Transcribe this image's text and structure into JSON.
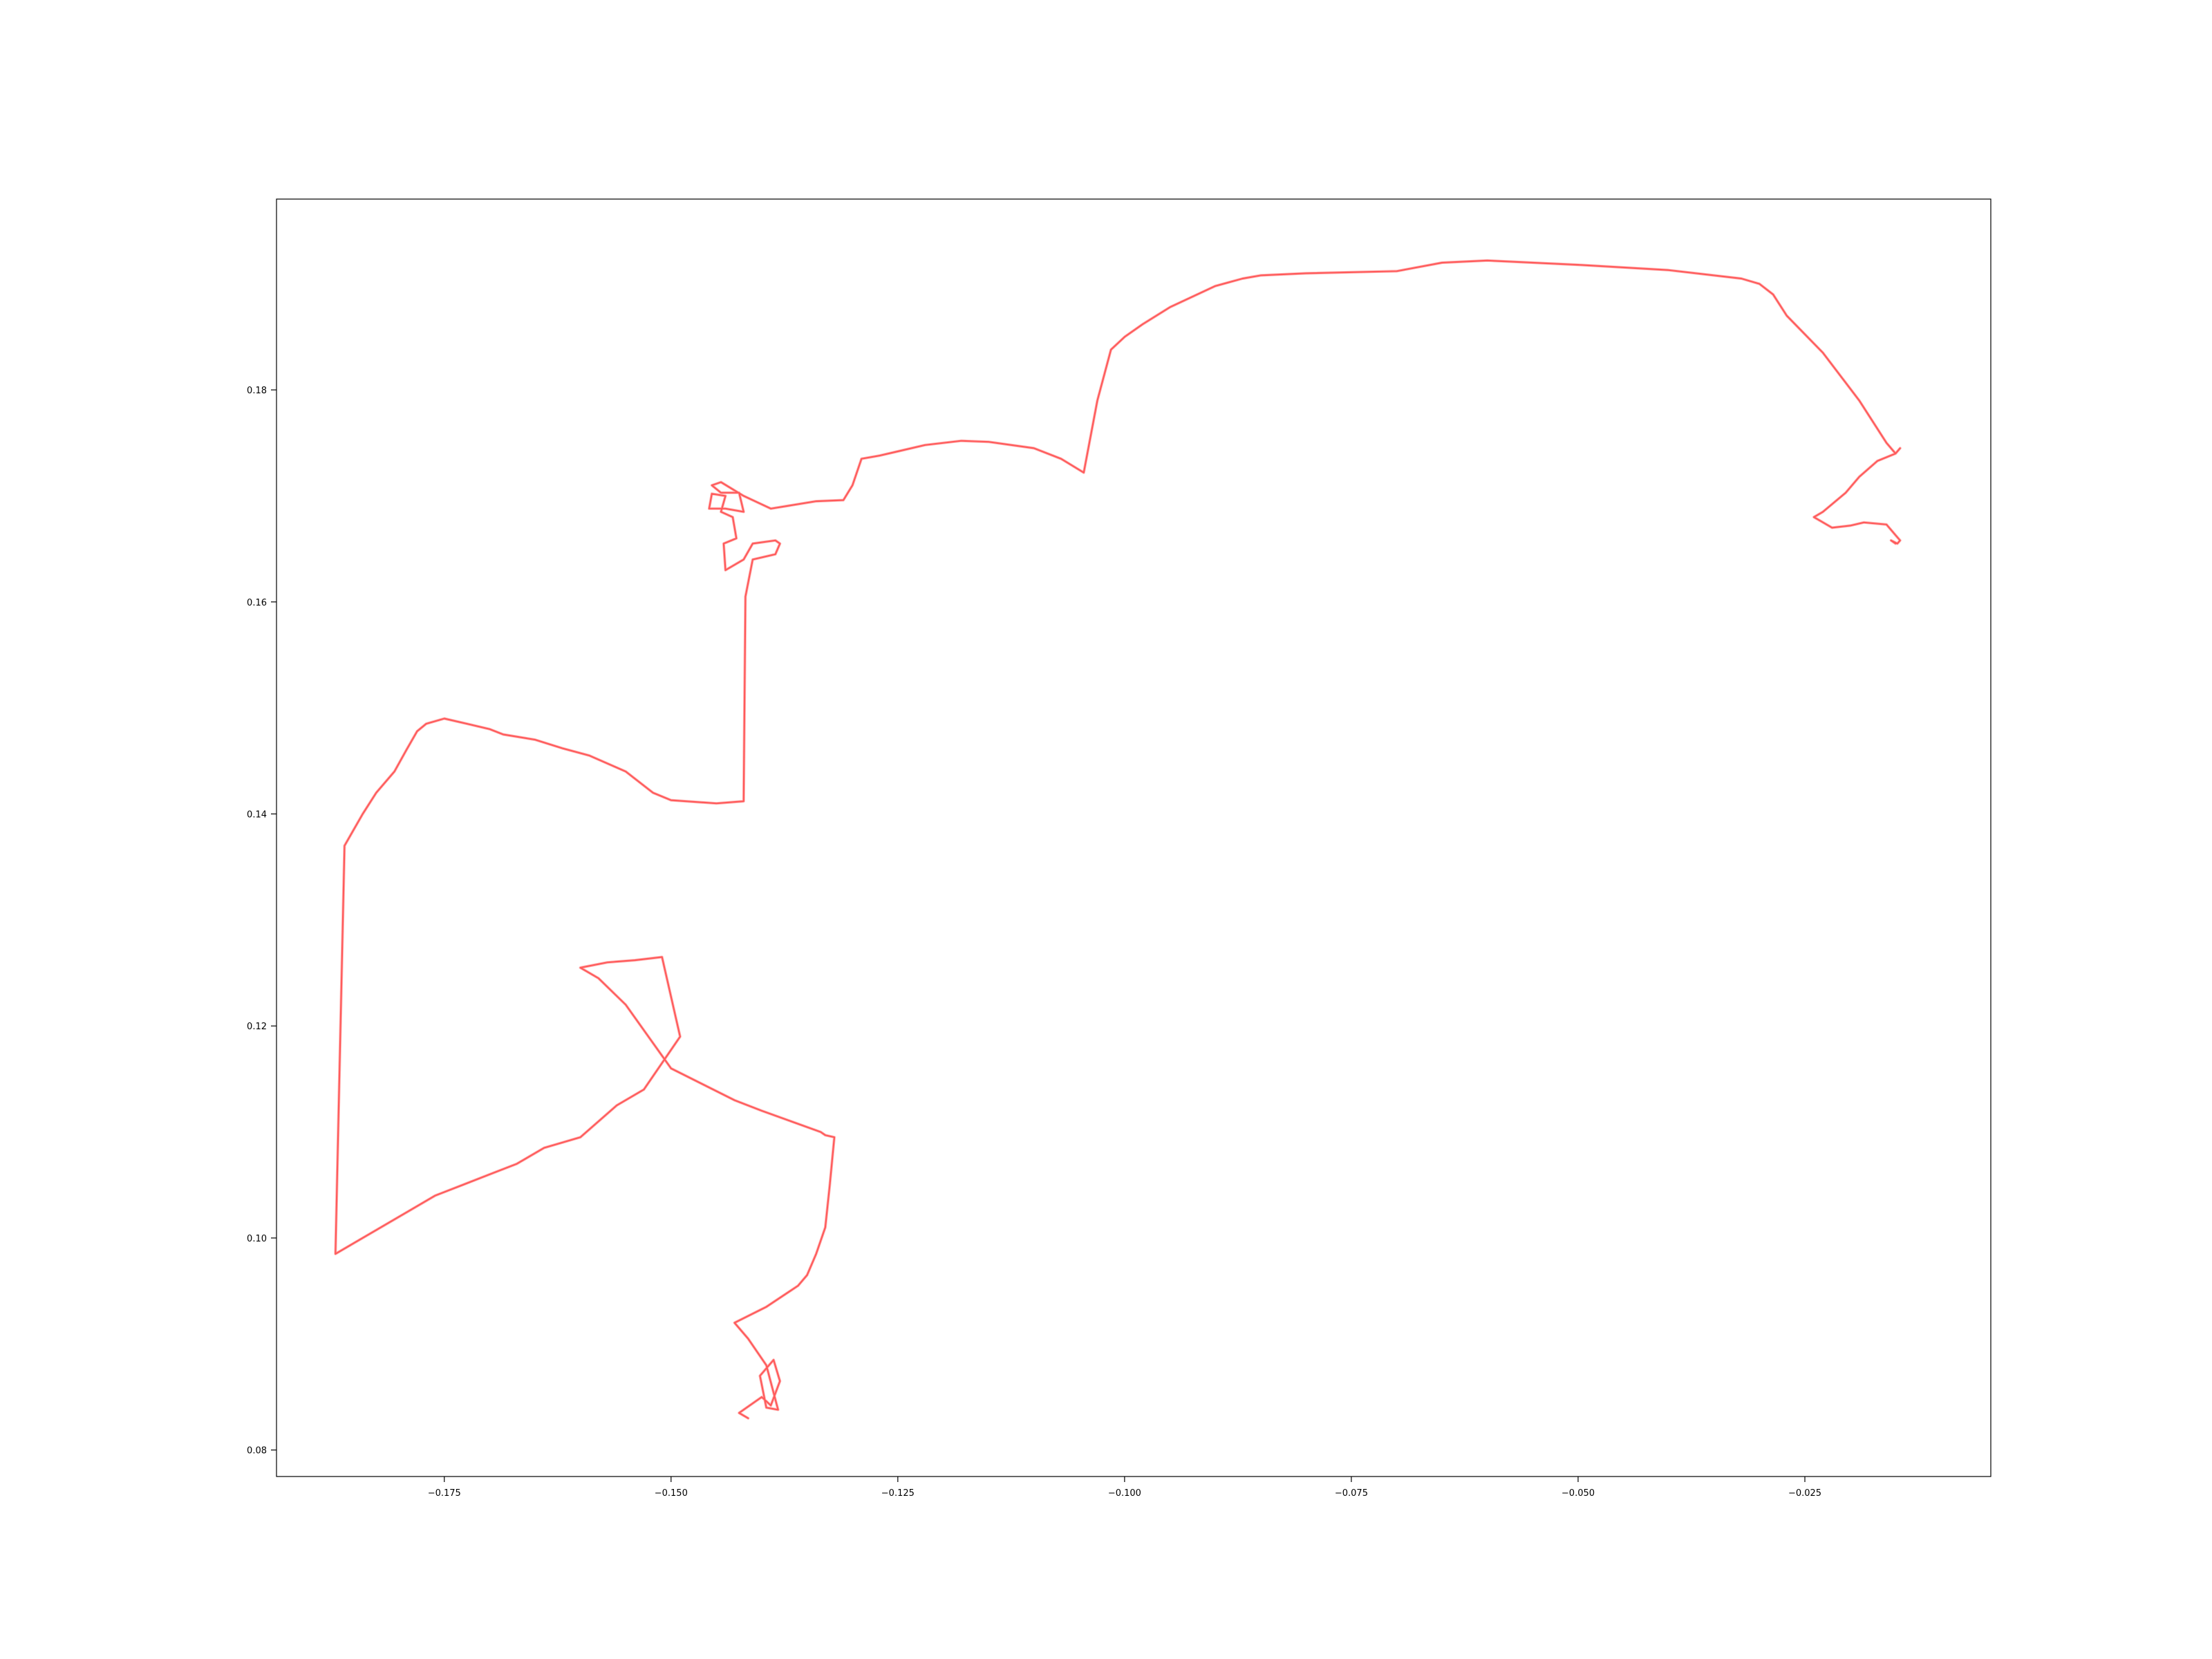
{
  "chart_data": {
    "type": "line",
    "title": "",
    "xlabel": "",
    "ylabel": "",
    "xlim": [
      -0.1935,
      -0.0045
    ],
    "ylim": [
      0.0775,
      0.198
    ],
    "grid": false,
    "legend": null,
    "x_ticks": [
      -0.175,
      -0.15,
      -0.125,
      -0.1,
      -0.075,
      -0.05,
      -0.025
    ],
    "x_tick_labels": [
      "−0.175",
      "−0.150",
      "−0.125",
      "−0.100",
      "−0.075",
      "−0.050",
      "−0.025"
    ],
    "y_ticks": [
      0.08,
      0.1,
      0.12,
      0.14,
      0.16,
      0.18
    ],
    "y_tick_labels": [
      "0.08",
      "0.10",
      "0.12",
      "0.14",
      "0.16",
      "0.18"
    ],
    "colors": {
      "line": "#ff5a5a",
      "frame": "#000000",
      "background": "#ffffff"
    },
    "series": [
      {
        "x": [
          -0.1415,
          -0.1425,
          -0.14,
          -0.139,
          -0.138,
          -0.1387,
          -0.1402,
          -0.1395,
          -0.1382,
          -0.1395,
          -0.1415,
          -0.143,
          -0.1395,
          -0.136,
          -0.135,
          -0.134,
          -0.133,
          -0.1325,
          -0.132,
          -0.133,
          -0.1335,
          -0.14,
          -0.143,
          -0.15,
          -0.155,
          -0.158,
          -0.16,
          -0.157,
          -0.154,
          -0.151,
          -0.149,
          -0.151,
          -0.153,
          -0.156,
          -0.16,
          -0.164,
          -0.167,
          -0.17,
          -0.173,
          -0.176,
          -0.179,
          -0.182,
          -0.185,
          -0.187,
          -0.186,
          -0.184,
          -0.1825,
          -0.1805,
          -0.1792,
          -0.178,
          -0.177,
          -0.175,
          -0.1725,
          -0.17,
          -0.1685,
          -0.165,
          -0.162,
          -0.159,
          -0.155,
          -0.152,
          -0.15,
          -0.145,
          -0.142,
          -0.1418,
          -0.141,
          -0.1385,
          -0.138,
          -0.1385,
          -0.141,
          -0.142,
          -0.144,
          -0.1442,
          -0.1428,
          -0.1432,
          -0.1445,
          -0.144,
          -0.1455,
          -0.1458,
          -0.144,
          -0.142,
          -0.1425,
          -0.1445,
          -0.1455,
          -0.1445,
          -0.142,
          -0.139,
          -0.134,
          -0.131,
          -0.13,
          -0.129,
          -0.127,
          -0.125,
          -0.122,
          -0.118,
          -0.115,
          -0.11,
          -0.107,
          -0.1045,
          -0.103,
          -0.1015,
          -0.1,
          -0.098,
          -0.095,
          -0.09,
          -0.087,
          -0.085,
          -0.08,
          -0.07,
          -0.065,
          -0.06,
          -0.05,
          -0.04,
          -0.032,
          -0.03,
          -0.0285,
          -0.027,
          -0.023,
          -0.019,
          -0.016,
          -0.015,
          -0.0145,
          -0.015,
          -0.017,
          -0.019,
          -0.0205,
          -0.023,
          -0.024,
          -0.022,
          -0.02,
          -0.0185,
          -0.016,
          -0.015,
          -0.0145,
          -0.0148,
          -0.0155,
          -0.015
        ],
        "y": [
          0.083,
          0.0835,
          0.085,
          0.0842,
          0.0865,
          0.0885,
          0.087,
          0.084,
          0.0838,
          0.088,
          0.0905,
          0.092,
          0.0935,
          0.0955,
          0.0965,
          0.0985,
          0.101,
          0.105,
          0.1095,
          0.1097,
          0.11,
          0.112,
          0.113,
          0.116,
          0.122,
          0.1245,
          0.1255,
          0.126,
          0.1262,
          0.1265,
          0.119,
          0.1165,
          0.114,
          0.1125,
          0.1095,
          0.1085,
          0.107,
          0.106,
          0.105,
          0.104,
          0.1025,
          0.101,
          0.0995,
          0.0985,
          0.137,
          0.14,
          0.142,
          0.144,
          0.146,
          0.1478,
          0.1485,
          0.149,
          0.1485,
          0.148,
          0.1475,
          0.147,
          0.1462,
          0.1455,
          0.144,
          0.142,
          0.1413,
          0.141,
          0.1412,
          0.1605,
          0.164,
          0.1645,
          0.1655,
          0.1658,
          0.1655,
          0.164,
          0.163,
          0.1655,
          0.166,
          0.168,
          0.1685,
          0.17,
          0.1702,
          0.1688,
          0.1688,
          0.1685,
          0.1703,
          0.1703,
          0.171,
          0.1713,
          0.17,
          0.1688,
          0.1695,
          0.1696,
          0.171,
          0.1735,
          0.1738,
          0.1742,
          0.1748,
          0.1752,
          0.1751,
          0.1745,
          0.1735,
          0.1722,
          0.179,
          0.1838,
          0.185,
          0.1862,
          0.1878,
          0.1898,
          0.1905,
          0.1908,
          0.191,
          0.1912,
          0.192,
          0.1922,
          0.1918,
          0.1913,
          0.1905,
          0.19,
          0.189,
          0.187,
          0.1835,
          0.179,
          0.175,
          0.174,
          0.1745,
          0.174,
          0.1733,
          0.1718,
          0.1703,
          0.1685,
          0.168,
          0.167,
          0.1672,
          0.1675,
          0.1673,
          0.1663,
          0.1658,
          0.1655,
          0.1658,
          0.1655
        ]
      }
    ]
  }
}
